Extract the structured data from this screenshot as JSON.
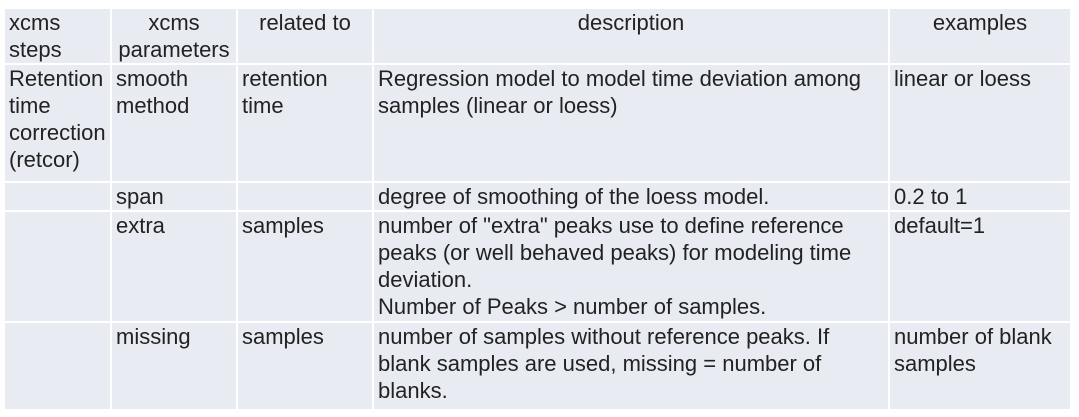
{
  "table": {
    "headers": [
      "xcms\nsteps",
      "xcms\nparameters",
      "related to",
      "description",
      "examples"
    ],
    "step": "Retention\ntime\ncorrection\n(retcor)",
    "rows": [
      {
        "parameter": "smooth\nmethod",
        "related": "retention\ntime",
        "description": "Regression model to model time deviation among\nsamples (linear or loess)",
        "example": "linear or loess"
      },
      {
        "parameter": "span",
        "related": "",
        "description": "degree of smoothing of the loess model.",
        "example": "0.2 to 1"
      },
      {
        "parameter": "extra",
        "related": "samples",
        "description": "number of \"extra\" peaks use to define reference\npeaks (or well behaved peaks) for modeling time\ndeviation.\nNumber of Peaks > number of samples.",
        "example": "default=1"
      },
      {
        "parameter": "missing",
        "related": "samples",
        "description": "number of samples without reference peaks. If\nblank samples are used, missing = number of\nblanks.",
        "example": "number of blank\nsamples"
      }
    ]
  }
}
